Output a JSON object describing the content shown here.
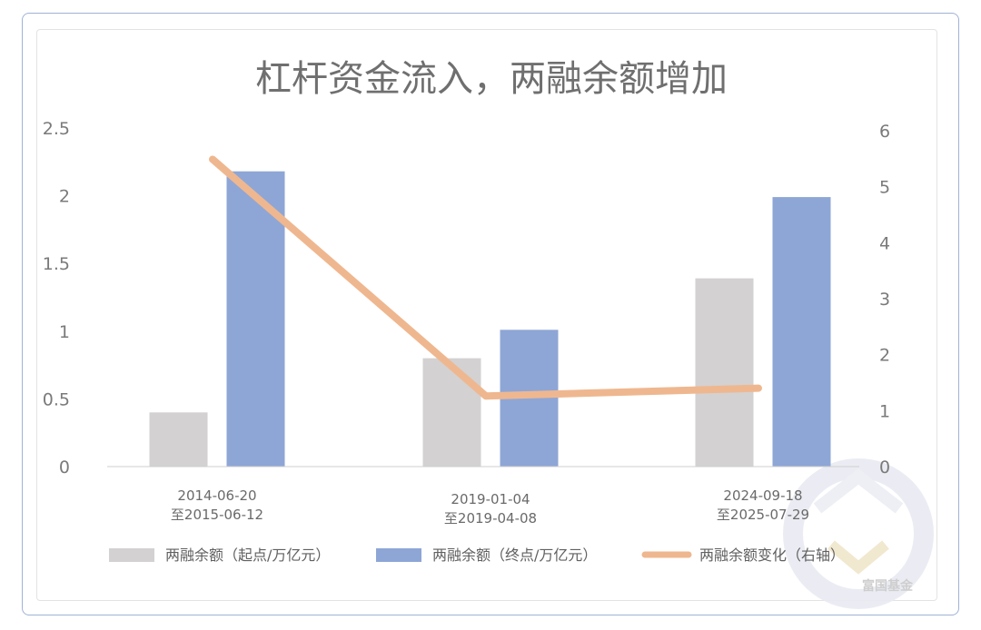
{
  "chart_data": {
    "type": "bar",
    "title": "杠杆资金流入，两融余额增加",
    "categories": [
      [
        "2014-06-20",
        "至2015-06-12"
      ],
      [
        "2019-01-04",
        "至2019-04-08"
      ],
      [
        "2024-09-18",
        "至2025-07-29"
      ]
    ],
    "series": [
      {
        "name": "两融余额（起点/万亿元）",
        "type": "bar",
        "axis": "left",
        "color": "#d3d1d1",
        "values": [
          0.4,
          0.8,
          1.39
        ]
      },
      {
        "name": "两融余额（终点/万亿元）",
        "type": "bar",
        "axis": "left",
        "color": "#8ea6d6",
        "values": [
          2.18,
          1.01,
          1.99
        ]
      },
      {
        "name": "两融余额变化（右轴）",
        "type": "line",
        "axis": "right",
        "color": "#efb78f",
        "values": [
          5.49,
          1.26,
          1.4
        ]
      }
    ],
    "y_left": {
      "min": 0,
      "max": 2.5,
      "ticks": [
        "0",
        "0.5",
        "1",
        "1.5",
        "2",
        "2.5"
      ]
    },
    "y_right": {
      "min": 0,
      "max": 6,
      "ticks": [
        "0",
        "1",
        "2",
        "3",
        "4",
        "5",
        "6"
      ]
    },
    "grid": false,
    "legend_position": "bottom"
  },
  "watermark": {
    "text": "富国基金",
    "icon": "fullgoal-logo-icon"
  }
}
